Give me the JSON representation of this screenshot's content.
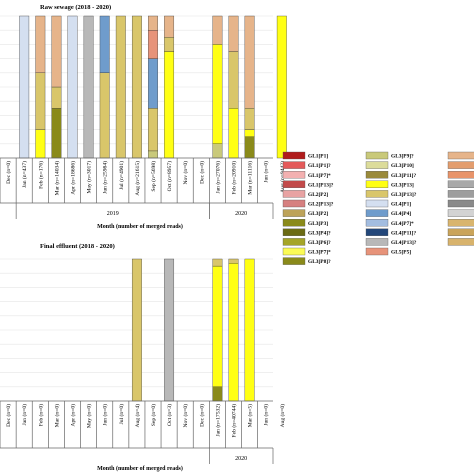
{
  "chart_data": [
    {
      "type": "bar",
      "stacked": true,
      "title": "Raw sewage (2018 - 2020)",
      "xlabel": "Month (number of merged reads)",
      "ylabel": "",
      "ylim": [
        0,
        100
      ],
      "grid": true,
      "categories": [
        "Nov (n=6148)",
        "Dec (n=0)",
        "Jan (n=437)",
        "Feb (n=176)",
        "Mar (n=14034)",
        "Apr (n=18686)",
        "May (n=3017)",
        "Jun (n=25984)",
        "Jul (n=4901)",
        "Aug (n=21615)",
        "Sep (n=5698)",
        "Oct (n=8957)",
        "Nov (n=0)",
        "Dec (n=0)",
        "Jan (n=27076)",
        "Feb (n=20910)",
        "Mar (n=11116)",
        "Jun (n=0)",
        "Aug (n=9442)"
      ],
      "years": [
        {
          "label": "2019",
          "from": 2,
          "to": 13
        },
        {
          "label": "2020",
          "from": 14,
          "to": 18
        }
      ],
      "series": [
        {
          "key": "gl1p1",
          "color": "#b01c1c",
          "values": [
            0,
            0,
            0,
            0,
            0,
            0,
            0,
            0,
            0,
            0,
            0,
            0,
            0,
            0,
            0,
            0,
            0,
            0,
            0
          ]
        },
        {
          "key": "gl1p1q",
          "color": "#e45a5a",
          "values": [
            0,
            0,
            0,
            0,
            0,
            0,
            0,
            0,
            0,
            0,
            0,
            0,
            0,
            0,
            0,
            0,
            0,
            0,
            0
          ]
        },
        {
          "key": "gl1p7q",
          "color": "#f3b0b0",
          "values": [
            0,
            0,
            0,
            0,
            0,
            0,
            0,
            0,
            0,
            0,
            0,
            0,
            0,
            0,
            0,
            0,
            0,
            0,
            0
          ]
        },
        {
          "key": "gl1p13q",
          "color": "#c24a4a",
          "values": [
            0,
            0,
            0,
            0,
            0,
            0,
            0,
            0,
            0,
            0,
            0,
            0,
            0,
            0,
            0,
            0,
            0,
            0,
            0
          ]
        },
        {
          "key": "gl2p2",
          "color": "#e8a3a3",
          "values": [
            0,
            0,
            0,
            0,
            0,
            0,
            0,
            0,
            0,
            0,
            0,
            0,
            0,
            0,
            0,
            0,
            0,
            0,
            0
          ]
        },
        {
          "key": "gl2p13q",
          "color": "#d68080",
          "values": [
            0,
            0,
            0,
            0,
            0,
            0,
            0,
            0,
            0,
            0,
            0,
            0,
            0,
            0,
            0,
            0,
            0,
            0,
            0
          ]
        },
        {
          "key": "gl3p2",
          "color": "#bda35a",
          "values": [
            0,
            0,
            0,
            0,
            0,
            0,
            0,
            0,
            0,
            0,
            0,
            0,
            0,
            0,
            0,
            0,
            0,
            0,
            0
          ]
        },
        {
          "key": "gl3p3",
          "color": "#8a8a1a",
          "values": [
            0,
            0,
            0,
            0,
            0,
            0,
            0,
            0,
            0,
            0,
            0,
            0,
            0,
            0,
            0,
            0,
            0,
            0,
            0
          ]
        },
        {
          "key": "gl3p4",
          "color": "#6b6b14",
          "values": [
            0,
            0,
            0,
            0,
            0,
            0,
            0,
            0,
            0,
            0,
            0,
            0,
            0,
            0,
            0,
            0,
            0,
            0,
            0
          ]
        },
        {
          "key": "gl3p6q",
          "color": "#a5a528",
          "values": [
            0,
            0,
            0,
            0,
            0,
            0,
            0,
            0,
            0,
            0,
            0,
            0,
            0,
            0,
            0,
            0,
            0,
            0,
            0
          ]
        },
        {
          "key": "gl3p7q",
          "color": "#fbfb56",
          "values": [
            0,
            0,
            0,
            0,
            0,
            0,
            0,
            0,
            0,
            0,
            0,
            0,
            0,
            0,
            0,
            0,
            0,
            0,
            0
          ]
        },
        {
          "key": "gl3p8q",
          "color": "#8a8a1a",
          "values": [
            0,
            0,
            0,
            0,
            35,
            0,
            0,
            0,
            0,
            0,
            0,
            0,
            0,
            0,
            0,
            0,
            15,
            0,
            0
          ]
        },
        {
          "key": "gl3p9q",
          "color": "#c9c97a",
          "values": [
            0,
            0,
            0,
            0,
            0,
            0,
            0,
            0,
            0,
            0,
            5,
            0,
            0,
            0,
            10,
            0,
            0,
            0,
            0
          ]
        },
        {
          "key": "gl3p10",
          "color": "#dcdc9a",
          "values": [
            0,
            0,
            0,
            0,
            0,
            0,
            0,
            0,
            0,
            0,
            0,
            0,
            0,
            0,
            0,
            0,
            0,
            0,
            0
          ]
        },
        {
          "key": "gl3p11q",
          "color": "#9a8a3a",
          "values": [
            0,
            0,
            0,
            0,
            0,
            0,
            0,
            0,
            0,
            0,
            0,
            0,
            0,
            0,
            0,
            0,
            0,
            0,
            0
          ]
        },
        {
          "key": "gl3p13",
          "color": "#ffff14",
          "values": [
            15,
            0,
            0,
            20,
            0,
            0,
            0,
            0,
            0,
            0,
            0,
            75,
            0,
            0,
            70,
            35,
            5,
            0,
            100
          ]
        },
        {
          "key": "gl3p13q",
          "color": "#d9c66a",
          "values": [
            85,
            0,
            0,
            40,
            15,
            0,
            0,
            60,
            100,
            100,
            30,
            10,
            0,
            0,
            0,
            40,
            15,
            0,
            0
          ]
        },
        {
          "key": "gl4p1",
          "color": "#d4dff0",
          "values": [
            0,
            0,
            100,
            0,
            0,
            100,
            0,
            0,
            0,
            0,
            0,
            0,
            0,
            0,
            0,
            0,
            0,
            0,
            0
          ]
        },
        {
          "key": "gl4p4",
          "color": "#6f9ccc",
          "values": [
            0,
            0,
            0,
            0,
            0,
            0,
            0,
            40,
            0,
            0,
            35,
            0,
            0,
            0,
            0,
            0,
            0,
            0,
            0
          ]
        },
        {
          "key": "gl4p7q",
          "color": "#a3bde0",
          "values": [
            0,
            0,
            0,
            0,
            0,
            0,
            0,
            0,
            0,
            0,
            0,
            0,
            0,
            0,
            0,
            0,
            0,
            0,
            0
          ]
        },
        {
          "key": "gl4p11q",
          "color": "#23477a",
          "values": [
            0,
            0,
            0,
            0,
            0,
            0,
            0,
            0,
            0,
            0,
            0,
            0,
            0,
            0,
            0,
            0,
            0,
            0,
            0
          ]
        },
        {
          "key": "gl4p13q",
          "color": "#b8b8b8",
          "values": [
            0,
            0,
            0,
            0,
            0,
            0,
            100,
            0,
            0,
            0,
            0,
            0,
            0,
            0,
            0,
            0,
            0,
            0,
            0
          ]
        },
        {
          "key": "gl5p5",
          "color": "#e7937a",
          "values": [
            0,
            0,
            0,
            0,
            0,
            0,
            0,
            0,
            0,
            0,
            20,
            0,
            0,
            0,
            0,
            0,
            0,
            0,
            0
          ]
        },
        {
          "key": "other_tan",
          "color": "#e6b48a",
          "values": [
            0,
            0,
            0,
            40,
            50,
            0,
            0,
            0,
            0,
            0,
            10,
            15,
            0,
            0,
            20,
            25,
            65,
            0,
            0
          ]
        }
      ]
    },
    {
      "type": "bar",
      "stacked": true,
      "title": "Final effluent (2018 - 2020)",
      "xlabel": "Month (number of merged reads)",
      "ylabel": "",
      "ylim": [
        0,
        100
      ],
      "grid": true,
      "categories": [
        "Nov (n=0)",
        "Dec (n=0)",
        "Jan (n=0)",
        "Feb (n=0)",
        "Mar (n=0)",
        "Apr (n=0)",
        "May (n=0)",
        "Jun (n=0)",
        "Jul (n=0)",
        "Aug (n=4)",
        "Sep (n=0)",
        "Oct (n=3)",
        "Nov (n=0)",
        "Dec (n=0)",
        "Jan (n=17532)",
        "Feb (n=40744)",
        "Mar (n=5)",
        "Jun (n=0)",
        "Aug (n=0)"
      ],
      "years": [
        {
          "label": "2020",
          "from": 14,
          "to": 18
        }
      ],
      "series": [
        {
          "key": "gl3p8q",
          "color": "#8a8a1a",
          "values": [
            0,
            0,
            0,
            0,
            0,
            0,
            0,
            0,
            0,
            0,
            0,
            0,
            0,
            0,
            10,
            0,
            0,
            0,
            0
          ]
        },
        {
          "key": "gl3p13",
          "color": "#ffff14",
          "values": [
            0,
            0,
            0,
            0,
            0,
            0,
            0,
            0,
            0,
            0,
            0,
            0,
            0,
            0,
            85,
            97,
            100,
            0,
            0
          ]
        },
        {
          "key": "gl3p13q",
          "color": "#d9c66a",
          "values": [
            0,
            0,
            0,
            0,
            0,
            0,
            0,
            0,
            0,
            100,
            0,
            0,
            0,
            0,
            5,
            3,
            0,
            0,
            0
          ]
        },
        {
          "key": "gl4p13q",
          "color": "#b8b8b8",
          "values": [
            0,
            0,
            0,
            0,
            0,
            0,
            0,
            0,
            0,
            0,
            0,
            100,
            0,
            0,
            0,
            0,
            0,
            0,
            0
          ]
        }
      ]
    }
  ],
  "legend": {
    "placement": "right",
    "entries": [
      {
        "label": "GL1[P1]",
        "color": "#b01c1c"
      },
      {
        "label": "GL1[P1]?",
        "color": "#e45a5a"
      },
      {
        "label": "GL1[P7]*",
        "color": "#f3b0b0"
      },
      {
        "label": "GL1[P13]?",
        "color": "#c24a4a"
      },
      {
        "label": "GL2[P2]",
        "color": "#e8a3a3"
      },
      {
        "label": "GL2[P13]?",
        "color": "#d68080"
      },
      {
        "label": "GL3[P2]",
        "color": "#bda35a"
      },
      {
        "label": "GL3[P3]",
        "color": "#8a8a1a"
      },
      {
        "label": "GL3[P4]?",
        "color": "#6b6b14"
      },
      {
        "label": "GL3[P6]?",
        "color": "#a5a528"
      },
      {
        "label": "GL3[P7]*",
        "color": "#fbfb56"
      },
      {
        "label": "GL3[P8]?",
        "color": "#8a8a1a"
      },
      {
        "label": "GL3[P9]?",
        "color": "#c9c97a"
      },
      {
        "label": "GL3[P10]",
        "color": "#dcdc9a"
      },
      {
        "label": "GL3[P11]?",
        "color": "#9a8a3a"
      },
      {
        "label": "GL3[P13]",
        "color": "#ffff14"
      },
      {
        "label": "GL3[P13]?",
        "color": "#d9c66a"
      },
      {
        "label": "GL4[P1]",
        "color": "#d4dff0"
      },
      {
        "label": "GL4[P4]",
        "color": "#6f9ccc"
      },
      {
        "label": "GL4[P7]*",
        "color": "#a3bde0"
      },
      {
        "label": "GL4[P11]?",
        "color": "#23477a"
      },
      {
        "label": "GL4[P13]?",
        "color": "#b8b8b8"
      },
      {
        "label": "GL5[P5]",
        "color": "#e7937a"
      }
    ],
    "partial_swatches": [
      "#e6b48a",
      "#e39d6e",
      "#e8946a",
      "#a9a9a9",
      "#9e9e9e",
      "#8a8a8a",
      "#d3d3d3",
      "#d9b56e",
      "#caa45a",
      "#d8b36c"
    ]
  }
}
